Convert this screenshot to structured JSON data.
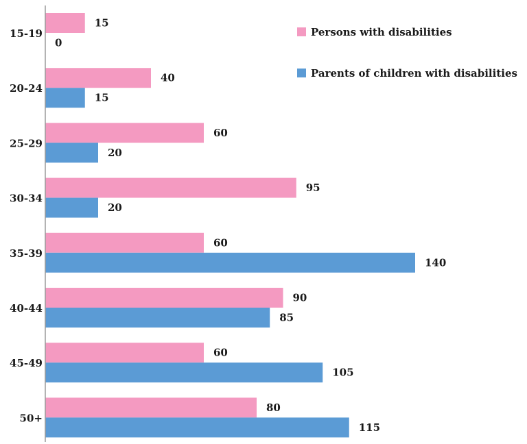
{
  "chart_data": {
    "type": "bar",
    "orientation": "horizontal",
    "categories": [
      "15-19",
      "20-24",
      "25-29",
      "30-34",
      "35-39",
      "40-44",
      "45-49",
      "50+"
    ],
    "series": [
      {
        "name": "Persons with disabilities",
        "color": "#f49ac1",
        "values": [
          15,
          40,
          60,
          95,
          60,
          90,
          60,
          80
        ]
      },
      {
        "name": "Parents of children with disabilities",
        "color": "#5b9bd5",
        "values": [
          0,
          15,
          20,
          20,
          140,
          85,
          105,
          115
        ]
      }
    ],
    "xlim": [
      0,
      160
    ],
    "grid": false,
    "legend_position": "top-right",
    "title": "",
    "xlabel": "",
    "ylabel": ""
  }
}
